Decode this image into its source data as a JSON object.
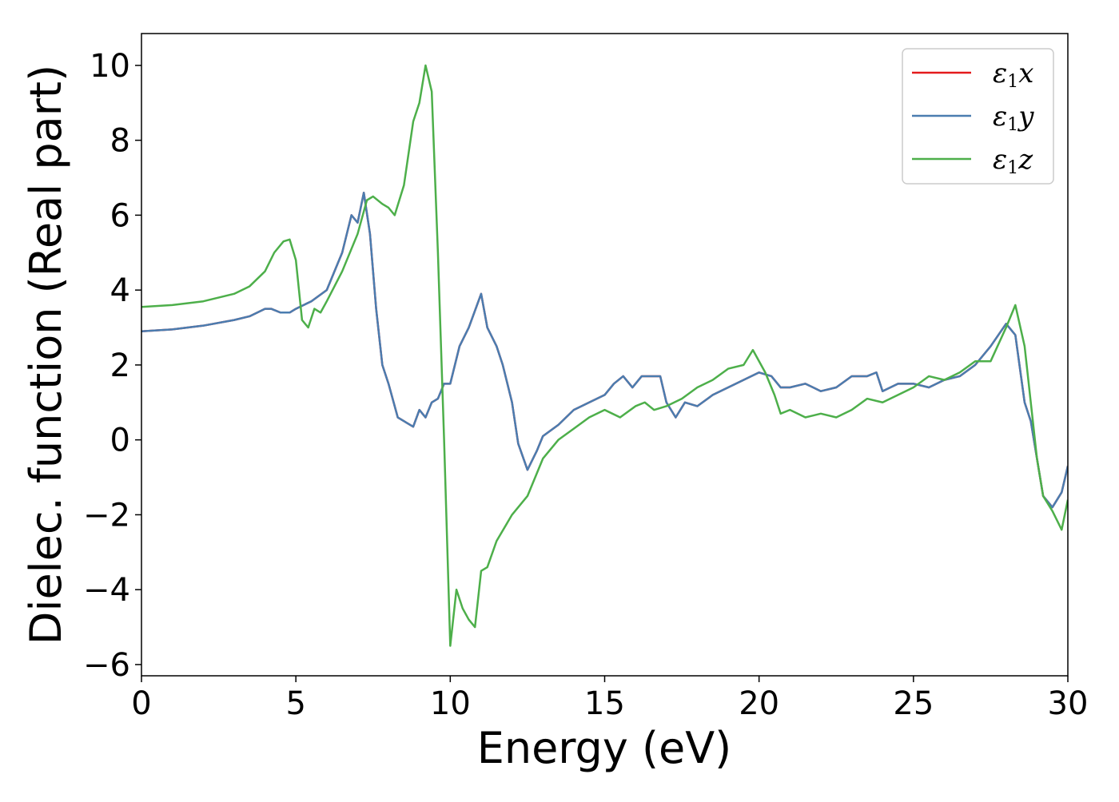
{
  "chart_data": {
    "type": "line",
    "title": "",
    "xlabel": "Energy (eV)",
    "ylabel": "Dielec. function (Real part)",
    "xlim": [
      0,
      30
    ],
    "ylim": [
      -6.3,
      10.85
    ],
    "x_ticks": [
      0,
      5,
      10,
      15,
      20,
      25,
      30
    ],
    "y_ticks": [
      -6,
      -4,
      -2,
      0,
      2,
      4,
      6,
      8,
      10
    ],
    "x_tick_labels": [
      "0",
      "5",
      "10",
      "15",
      "20",
      "25",
      "30"
    ],
    "y_tick_labels": [
      "−6",
      "−4",
      "−2",
      "0",
      "2",
      "4",
      "6",
      "8",
      "10"
    ],
    "grid": false,
    "legend_position": "top-right",
    "series": [
      {
        "name": "ε",
        "subscript": "1",
        "suffix": "x",
        "color": "#e41a1c",
        "x": [
          0,
          1,
          2,
          3,
          3.5,
          4,
          4.2,
          4.5,
          4.8,
          5,
          5.5,
          6,
          6.5,
          6.8,
          7,
          7.2,
          7.4,
          7.6,
          7.8,
          8,
          8.3,
          8.5,
          8.8,
          9,
          9.2,
          9.4,
          9.6,
          9.8,
          10,
          10.3,
          10.6,
          11,
          11.2,
          11.5,
          11.7,
          12,
          12.2,
          12.5,
          12.8,
          13,
          13.5,
          14,
          14.5,
          15,
          15.3,
          15.6,
          15.9,
          16.2,
          16.5,
          16.8,
          17,
          17.3,
          17.6,
          18,
          18.5,
          19,
          19.5,
          20,
          20.4,
          20.7,
          21,
          21.5,
          22,
          22.5,
          23,
          23.5,
          23.8,
          24,
          24.5,
          25,
          25.5,
          26,
          26.5,
          27,
          27.5,
          28,
          28.3,
          28.6,
          28.8,
          29,
          29.2,
          29.5,
          29.8,
          30
        ],
        "y": [
          2.9,
          2.95,
          3.05,
          3.2,
          3.3,
          3.5,
          3.5,
          3.4,
          3.4,
          3.5,
          3.7,
          4.0,
          5.0,
          6.0,
          5.8,
          6.6,
          5.5,
          3.5,
          2.0,
          1.5,
          0.6,
          0.5,
          0.35,
          0.8,
          0.6,
          1.0,
          1.1,
          1.5,
          1.5,
          2.5,
          3.0,
          3.9,
          3.0,
          2.5,
          2.0,
          1.0,
          -0.1,
          -0.8,
          -0.3,
          0.1,
          0.4,
          0.8,
          1.0,
          1.2,
          1.5,
          1.7,
          1.4,
          1.7,
          1.7,
          1.7,
          1.0,
          0.6,
          1.0,
          0.9,
          1.2,
          1.4,
          1.6,
          1.8,
          1.7,
          1.4,
          1.4,
          1.5,
          1.3,
          1.4,
          1.7,
          1.7,
          1.8,
          1.3,
          1.5,
          1.5,
          1.4,
          1.6,
          1.7,
          2.0,
          2.5,
          3.1,
          2.8,
          1.0,
          0.5,
          -0.5,
          -1.5,
          -1.8,
          -1.4,
          -0.7
        ]
      },
      {
        "name": "ε",
        "subscript": "1",
        "suffix": "y",
        "color": "#4a7db0",
        "x": [
          0,
          1,
          2,
          3,
          3.5,
          4,
          4.2,
          4.5,
          4.8,
          5,
          5.5,
          6,
          6.5,
          6.8,
          7,
          7.2,
          7.4,
          7.6,
          7.8,
          8,
          8.3,
          8.5,
          8.8,
          9,
          9.2,
          9.4,
          9.6,
          9.8,
          10,
          10.3,
          10.6,
          11,
          11.2,
          11.5,
          11.7,
          12,
          12.2,
          12.5,
          12.8,
          13,
          13.5,
          14,
          14.5,
          15,
          15.3,
          15.6,
          15.9,
          16.2,
          16.5,
          16.8,
          17,
          17.3,
          17.6,
          18,
          18.5,
          19,
          19.5,
          20,
          20.4,
          20.7,
          21,
          21.5,
          22,
          22.5,
          23,
          23.5,
          23.8,
          24,
          24.5,
          25,
          25.5,
          26,
          26.5,
          27,
          27.5,
          28,
          28.3,
          28.6,
          28.8,
          29,
          29.2,
          29.5,
          29.8,
          30
        ],
        "y": [
          2.9,
          2.95,
          3.05,
          3.2,
          3.3,
          3.5,
          3.5,
          3.4,
          3.4,
          3.5,
          3.7,
          4.0,
          5.0,
          6.0,
          5.8,
          6.6,
          5.5,
          3.5,
          2.0,
          1.5,
          0.6,
          0.5,
          0.35,
          0.8,
          0.6,
          1.0,
          1.1,
          1.5,
          1.5,
          2.5,
          3.0,
          3.9,
          3.0,
          2.5,
          2.0,
          1.0,
          -0.1,
          -0.8,
          -0.3,
          0.1,
          0.4,
          0.8,
          1.0,
          1.2,
          1.5,
          1.7,
          1.4,
          1.7,
          1.7,
          1.7,
          1.0,
          0.6,
          1.0,
          0.9,
          1.2,
          1.4,
          1.6,
          1.8,
          1.7,
          1.4,
          1.4,
          1.5,
          1.3,
          1.4,
          1.7,
          1.7,
          1.8,
          1.3,
          1.5,
          1.5,
          1.4,
          1.6,
          1.7,
          2.0,
          2.5,
          3.1,
          2.8,
          1.0,
          0.5,
          -0.5,
          -1.5,
          -1.8,
          -1.4,
          -0.7
        ]
      },
      {
        "name": "ε",
        "subscript": "1",
        "suffix": "z",
        "color": "#4daf4a",
        "x": [
          0,
          1,
          2,
          3,
          3.5,
          4,
          4.3,
          4.6,
          4.8,
          5.0,
          5.2,
          5.4,
          5.6,
          5.8,
          6,
          6.5,
          7,
          7.3,
          7.5,
          7.8,
          8,
          8.2,
          8.5,
          8.8,
          9.0,
          9.2,
          9.4,
          9.6,
          9.8,
          10.0,
          10.2,
          10.4,
          10.6,
          10.8,
          11,
          11.2,
          11.5,
          12,
          12.5,
          13,
          13.5,
          14,
          14.5,
          15,
          15.5,
          16,
          16.3,
          16.6,
          17,
          17.5,
          18,
          18.5,
          19,
          19.5,
          19.8,
          20.2,
          20.5,
          20.7,
          21,
          21.5,
          22,
          22.5,
          23,
          23.5,
          24,
          24.5,
          25,
          25.5,
          26,
          26.5,
          27,
          27.5,
          28,
          28.3,
          28.6,
          28.8,
          29,
          29.2,
          29.5,
          29.8,
          30
        ],
        "y": [
          3.55,
          3.6,
          3.7,
          3.9,
          4.1,
          4.5,
          5.0,
          5.3,
          5.35,
          4.8,
          3.2,
          3.0,
          3.5,
          3.4,
          3.7,
          4.5,
          5.5,
          6.4,
          6.5,
          6.3,
          6.2,
          6.0,
          6.8,
          8.5,
          9.0,
          10.0,
          9.3,
          5.0,
          0.0,
          -5.5,
          -4.0,
          -4.5,
          -4.8,
          -5.0,
          -3.5,
          -3.4,
          -2.7,
          -2.0,
          -1.5,
          -0.5,
          0.0,
          0.3,
          0.6,
          0.8,
          0.6,
          0.9,
          1.0,
          0.8,
          0.9,
          1.1,
          1.4,
          1.6,
          1.9,
          2.0,
          2.4,
          1.8,
          1.2,
          0.7,
          0.8,
          0.6,
          0.7,
          0.6,
          0.8,
          1.1,
          1.0,
          1.2,
          1.4,
          1.7,
          1.6,
          1.8,
          2.1,
          2.1,
          3.0,
          3.6,
          2.5,
          1.0,
          -0.5,
          -1.5,
          -1.9,
          -2.4,
          -1.6
        ]
      }
    ]
  }
}
